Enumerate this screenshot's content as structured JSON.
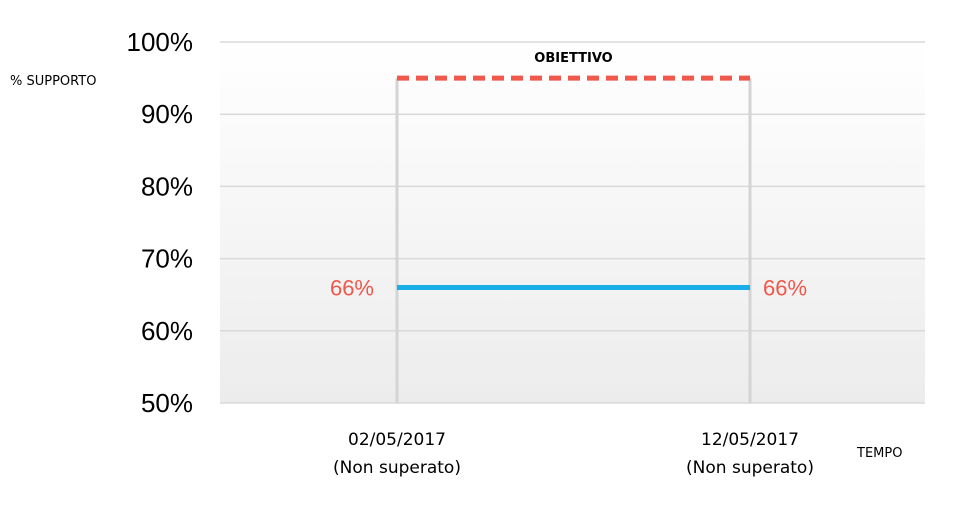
{
  "chart_data": {
    "type": "line",
    "title": "",
    "ylabel": "% SUPPORTO",
    "xlabel": "TEMPO",
    "ylim": [
      50,
      100
    ],
    "yticks": [
      100,
      90,
      80,
      70,
      60,
      50
    ],
    "ytick_labels": [
      "100%",
      "90%",
      "80%",
      "70%",
      "60%",
      "50%"
    ],
    "grid": true,
    "categories": [
      {
        "date": "02/05/2017",
        "status": "(Non superato)"
      },
      {
        "date": "12/05/2017",
        "status": "(Non superato)"
      }
    ],
    "series": [
      {
        "values": [
          66,
          66
        ],
        "labels": [
          "66%",
          "66%"
        ],
        "color": "#1aaee8"
      }
    ],
    "target": {
      "name": "OBIETTIVO",
      "value": 95,
      "color": "#f0584b"
    },
    "data_label_color": "#f0584b",
    "gridline_color": "#d9d9d9"
  }
}
